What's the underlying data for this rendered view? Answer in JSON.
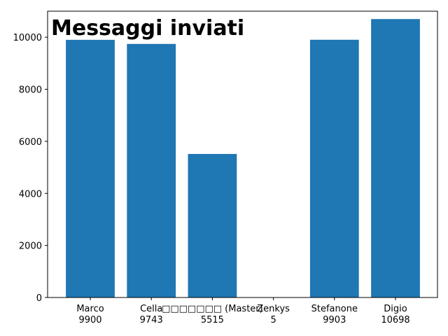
{
  "chart_data": {
    "type": "bar",
    "title": "Messaggi inviati",
    "xlabel": "",
    "ylabel": "",
    "categories": [
      [
        "Marco",
        "9900"
      ],
      [
        "Cella",
        "9743"
      ],
      [
        "□□□□□□□ (Master)",
        "5515"
      ],
      [
        "Zenkys",
        "5"
      ],
      [
        "Stefanone",
        "9903"
      ],
      [
        "Digio",
        "10698"
      ]
    ],
    "values": [
      9900,
      9743,
      5515,
      5,
      9903,
      10698
    ],
    "ylim": [
      0,
      11000
    ],
    "yticks": [
      0,
      2000,
      4000,
      6000,
      8000,
      10000
    ],
    "grid": false,
    "bar_color": "#1f77b4"
  }
}
